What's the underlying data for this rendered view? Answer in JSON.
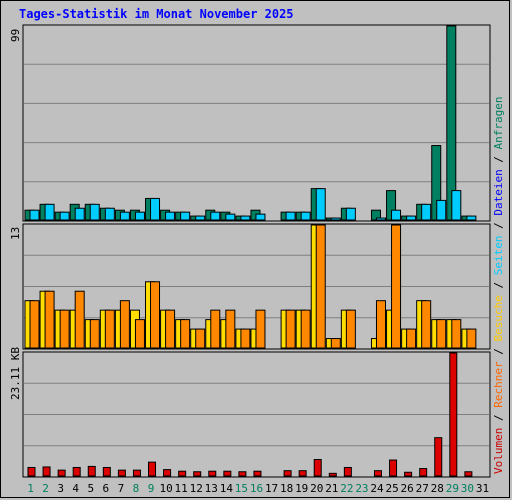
{
  "title": "Tages-Statistik im Monat November 2025",
  "legend": {
    "items": [
      {
        "label": "Volumen",
        "color": "#cc0000"
      },
      {
        "label": "Rechner",
        "color": "#ff6600"
      },
      {
        "label": "Besuche",
        "color": "#ffcc00"
      },
      {
        "label": "Seiten",
        "color": "#00ccff"
      },
      {
        "label": "Dateien",
        "color": "#0000ff"
      },
      {
        "label": "Anfragen",
        "color": "#008060"
      }
    ],
    "separator": " / "
  },
  "colors": {
    "anfragen": "#008060",
    "dateien": "#00ccff",
    "besuche": "#ffdd00",
    "rechner": "#ff8800",
    "volumen": "#dd0000",
    "weekend_label": "#008060",
    "weekday_label": "#000000"
  },
  "chart_data": [
    {
      "type": "bar",
      "panel": "Anfragen / Dateien",
      "ylabel": "99",
      "ylim": [
        0,
        99
      ],
      "categories": [
        "1",
        "2",
        "3",
        "4",
        "5",
        "6",
        "7",
        "8",
        "9",
        "10",
        "11",
        "12",
        "13",
        "14",
        "15",
        "16",
        "17",
        "18",
        "19",
        "20",
        "21",
        "22",
        "23",
        "24",
        "25",
        "26",
        "27",
        "28",
        "29",
        "30",
        "31"
      ],
      "series": [
        {
          "name": "Anfragen",
          "values": [
            5,
            8,
            4,
            8,
            8,
            6,
            5,
            5,
            11,
            5,
            4,
            2,
            5,
            4,
            2,
            5,
            0,
            4,
            4,
            16,
            1,
            6,
            0,
            5,
            15,
            2,
            8,
            38,
            99,
            2,
            0
          ]
        },
        {
          "name": "Dateien",
          "values": [
            5,
            8,
            4,
            6,
            8,
            6,
            4,
            4,
            11,
            4,
            4,
            2,
            4,
            3,
            2,
            3,
            0,
            4,
            4,
            16,
            1,
            6,
            0,
            1,
            5,
            2,
            8,
            10,
            15,
            2,
            0
          ]
        }
      ]
    },
    {
      "type": "bar",
      "panel": "Besuche / Rechner",
      "ylabel": "13",
      "ylim": [
        0,
        13
      ],
      "categories": [
        "1",
        "2",
        "3",
        "4",
        "5",
        "6",
        "7",
        "8",
        "9",
        "10",
        "11",
        "12",
        "13",
        "14",
        "15",
        "16",
        "17",
        "18",
        "19",
        "20",
        "21",
        "22",
        "23",
        "24",
        "25",
        "26",
        "27",
        "28",
        "29",
        "30",
        "31"
      ],
      "series": [
        {
          "name": "Besuche",
          "values": [
            5,
            6,
            4,
            4,
            3,
            4,
            4,
            4,
            7,
            4,
            3,
            2,
            3,
            3,
            2,
            2,
            0,
            4,
            4,
            13,
            1,
            4,
            0,
            1,
            4,
            2,
            5,
            3,
            3,
            2,
            0
          ]
        },
        {
          "name": "Rechner",
          "values": [
            5,
            6,
            4,
            6,
            3,
            4,
            5,
            3,
            7,
            4,
            3,
            2,
            4,
            4,
            2,
            4,
            0,
            4,
            4,
            13,
            1,
            4,
            0,
            5,
            13,
            2,
            5,
            3,
            3,
            2,
            0
          ]
        }
      ]
    },
    {
      "type": "bar",
      "panel": "Volumen",
      "ylabel": "23.11 KB",
      "ylim": [
        0,
        23.11
      ],
      "categories": [
        "1",
        "2",
        "3",
        "4",
        "5",
        "6",
        "7",
        "8",
        "9",
        "10",
        "11",
        "12",
        "13",
        "14",
        "15",
        "16",
        "17",
        "18",
        "19",
        "20",
        "21",
        "22",
        "23",
        "24",
        "25",
        "26",
        "27",
        "28",
        "29",
        "30",
        "31"
      ],
      "series": [
        {
          "name": "Volumen",
          "values": [
            1.6,
            1.7,
            1.1,
            1.6,
            1.8,
            1.6,
            1.1,
            1.1,
            2.6,
            1.2,
            0.9,
            0.8,
            0.9,
            0.9,
            0.8,
            0.9,
            0,
            1.0,
            1.0,
            3.1,
            0.5,
            1.6,
            0,
            1.0,
            3.0,
            0.7,
            1.4,
            7.2,
            23.11,
            0.8,
            0
          ]
        }
      ]
    }
  ],
  "xaxis": {
    "labels": [
      "1",
      "2",
      "3",
      "4",
      "5",
      "6",
      "7",
      "8",
      "9",
      "10",
      "11",
      "12",
      "13",
      "14",
      "15",
      "16",
      "17",
      "18",
      "19",
      "20",
      "21",
      "22",
      "23",
      "24",
      "25",
      "26",
      "27",
      "28",
      "29",
      "30",
      "31"
    ],
    "weekend": [
      1,
      2,
      8,
      9,
      15,
      16,
      22,
      23,
      29,
      30
    ]
  }
}
